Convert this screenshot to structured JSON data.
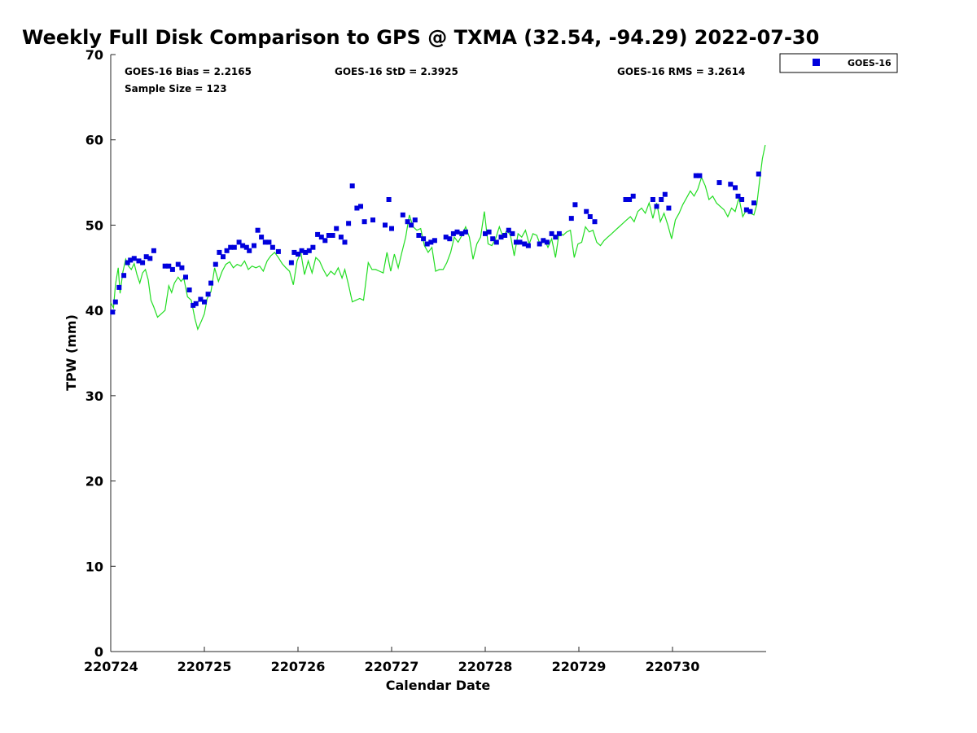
{
  "chart_data": {
    "type": "scatter",
    "title": "Weekly Full Disk Comparison to GPS @ TXMA (32.54, -94.29) 2022-07-30",
    "xlabel": "Calendar Date",
    "ylabel": "TPW (mm)",
    "xlim": [
      0,
      7
    ],
    "ylim": [
      0,
      70
    ],
    "x_ticks": [
      {
        "value": 0,
        "label": "220724"
      },
      {
        "value": 1,
        "label": "220725"
      },
      {
        "value": 2,
        "label": "220726"
      },
      {
        "value": 3,
        "label": "220727"
      },
      {
        "value": 4,
        "label": "220728"
      },
      {
        "value": 5,
        "label": "220729"
      },
      {
        "value": 6,
        "label": "220730"
      }
    ],
    "y_ticks": [
      0,
      10,
      20,
      30,
      40,
      50,
      60,
      70
    ],
    "grid": false,
    "legend_position": "outside-top-right",
    "stats": {
      "bias": "GOES-16 Bias = 2.2165",
      "std": "GOES-16 StD = 2.3925",
      "rms": "GOES-16 RMS = 3.2614",
      "sample": "Sample Size = 123"
    },
    "colors": {
      "goes": "#0000dd",
      "gps": "#22dd22"
    },
    "series": [
      {
        "name": "GOES-16",
        "kind": "points",
        "points": [
          [
            0.02,
            39.8
          ],
          [
            0.05,
            41.0
          ],
          [
            0.09,
            42.7
          ],
          [
            0.14,
            44.1
          ],
          [
            0.18,
            45.6
          ],
          [
            0.21,
            45.9
          ],
          [
            0.25,
            46.1
          ],
          [
            0.3,
            45.8
          ],
          [
            0.34,
            45.6
          ],
          [
            0.38,
            46.3
          ],
          [
            0.42,
            46.1
          ],
          [
            0.46,
            47.0
          ],
          [
            0.58,
            45.2
          ],
          [
            0.62,
            45.2
          ],
          [
            0.66,
            44.8
          ],
          [
            0.72,
            45.4
          ],
          [
            0.76,
            45.0
          ],
          [
            0.8,
            43.9
          ],
          [
            0.84,
            42.4
          ],
          [
            0.88,
            40.6
          ],
          [
            0.91,
            40.8
          ],
          [
            0.96,
            41.3
          ],
          [
            1.0,
            41.0
          ],
          [
            1.04,
            41.9
          ],
          [
            1.07,
            43.2
          ],
          [
            1.12,
            45.4
          ],
          [
            1.16,
            46.8
          ],
          [
            1.2,
            46.3
          ],
          [
            1.24,
            47.0
          ],
          [
            1.28,
            47.4
          ],
          [
            1.32,
            47.4
          ],
          [
            1.37,
            48.0
          ],
          [
            1.41,
            47.6
          ],
          [
            1.45,
            47.4
          ],
          [
            1.48,
            47.0
          ],
          [
            1.53,
            47.6
          ],
          [
            1.57,
            49.4
          ],
          [
            1.61,
            48.6
          ],
          [
            1.65,
            48.0
          ],
          [
            1.69,
            48.0
          ],
          [
            1.73,
            47.4
          ],
          [
            1.79,
            46.9
          ],
          [
            1.93,
            45.6
          ],
          [
            1.96,
            46.8
          ],
          [
            2.0,
            46.6
          ],
          [
            2.04,
            47.0
          ],
          [
            2.08,
            46.8
          ],
          [
            2.12,
            47.0
          ],
          [
            2.16,
            47.4
          ],
          [
            2.21,
            48.9
          ],
          [
            2.25,
            48.6
          ],
          [
            2.29,
            48.2
          ],
          [
            2.33,
            48.8
          ],
          [
            2.37,
            48.8
          ],
          [
            2.41,
            49.6
          ],
          [
            2.46,
            48.6
          ],
          [
            2.5,
            48.0
          ],
          [
            2.54,
            50.2
          ],
          [
            2.58,
            54.6
          ],
          [
            2.63,
            52.0
          ],
          [
            2.67,
            52.2
          ],
          [
            2.71,
            50.4
          ],
          [
            2.8,
            50.6
          ],
          [
            2.93,
            50.0
          ],
          [
            2.97,
            53.0
          ],
          [
            3.0,
            49.6
          ],
          [
            3.12,
            51.2
          ],
          [
            3.17,
            50.4
          ],
          [
            3.21,
            50.0
          ],
          [
            3.25,
            50.6
          ],
          [
            3.29,
            48.8
          ],
          [
            3.34,
            48.4
          ],
          [
            3.38,
            47.8
          ],
          [
            3.42,
            48.0
          ],
          [
            3.46,
            48.2
          ],
          [
            3.58,
            48.6
          ],
          [
            3.62,
            48.4
          ],
          [
            3.66,
            49.0
          ],
          [
            3.7,
            49.2
          ],
          [
            3.75,
            49.0
          ],
          [
            3.79,
            49.2
          ],
          [
            4.0,
            49.0
          ],
          [
            4.04,
            49.2
          ],
          [
            4.08,
            48.4
          ],
          [
            4.12,
            48.0
          ],
          [
            4.17,
            48.6
          ],
          [
            4.21,
            48.8
          ],
          [
            4.25,
            49.4
          ],
          [
            4.29,
            49.0
          ],
          [
            4.33,
            48.0
          ],
          [
            4.37,
            48.0
          ],
          [
            4.42,
            47.8
          ],
          [
            4.46,
            47.6
          ],
          [
            4.58,
            47.8
          ],
          [
            4.62,
            48.2
          ],
          [
            4.66,
            48.0
          ],
          [
            4.71,
            49.0
          ],
          [
            4.75,
            48.6
          ],
          [
            4.79,
            49.0
          ],
          [
            4.92,
            50.8
          ],
          [
            4.96,
            52.4
          ],
          [
            5.08,
            51.6
          ],
          [
            5.12,
            51.0
          ],
          [
            5.17,
            50.4
          ],
          [
            5.5,
            53.0
          ],
          [
            5.54,
            53.0
          ],
          [
            5.58,
            53.4
          ],
          [
            5.79,
            53.0
          ],
          [
            5.83,
            52.2
          ],
          [
            5.88,
            53.0
          ],
          [
            5.92,
            53.6
          ],
          [
            5.96,
            52.0
          ],
          [
            6.25,
            55.8
          ],
          [
            6.29,
            55.8
          ],
          [
            6.5,
            55.0
          ],
          [
            6.62,
            54.8
          ],
          [
            6.67,
            54.4
          ],
          [
            6.7,
            53.4
          ],
          [
            6.74,
            53.0
          ],
          [
            6.79,
            51.8
          ],
          [
            6.83,
            51.6
          ],
          [
            6.87,
            52.6
          ],
          [
            6.92,
            56.0
          ]
        ]
      },
      {
        "name": "",
        "kind": "line",
        "points": [
          [
            0.0,
            40.9
          ],
          [
            0.03,
            40.3
          ],
          [
            0.05,
            43.0
          ],
          [
            0.08,
            45.0
          ],
          [
            0.1,
            42.0
          ],
          [
            0.13,
            44.5
          ],
          [
            0.16,
            46.0
          ],
          [
            0.19,
            45.2
          ],
          [
            0.22,
            44.8
          ],
          [
            0.25,
            45.5
          ],
          [
            0.28,
            44.2
          ],
          [
            0.31,
            43.2
          ],
          [
            0.34,
            44.4
          ],
          [
            0.37,
            44.8
          ],
          [
            0.4,
            43.6
          ],
          [
            0.43,
            41.2
          ],
          [
            0.46,
            40.4
          ],
          [
            0.5,
            39.2
          ],
          [
            0.54,
            39.6
          ],
          [
            0.58,
            40.0
          ],
          [
            0.62,
            42.9
          ],
          [
            0.65,
            42.1
          ],
          [
            0.68,
            43.2
          ],
          [
            0.72,
            43.9
          ],
          [
            0.75,
            43.4
          ],
          [
            0.78,
            43.8
          ],
          [
            0.82,
            41.6
          ],
          [
            0.86,
            41.2
          ],
          [
            0.9,
            39.0
          ],
          [
            0.93,
            37.8
          ],
          [
            0.97,
            38.8
          ],
          [
            1.0,
            39.6
          ],
          [
            1.03,
            41.4
          ],
          [
            1.07,
            42.2
          ],
          [
            1.11,
            45.0
          ],
          [
            1.15,
            43.4
          ],
          [
            1.19,
            44.6
          ],
          [
            1.23,
            45.4
          ],
          [
            1.27,
            45.7
          ],
          [
            1.31,
            45.0
          ],
          [
            1.35,
            45.4
          ],
          [
            1.39,
            45.2
          ],
          [
            1.43,
            45.8
          ],
          [
            1.47,
            44.8
          ],
          [
            1.51,
            45.2
          ],
          [
            1.55,
            45.0
          ],
          [
            1.59,
            45.2
          ],
          [
            1.63,
            44.6
          ],
          [
            1.67,
            45.8
          ],
          [
            1.71,
            46.4
          ],
          [
            1.75,
            46.8
          ],
          [
            1.79,
            46.2
          ],
          [
            1.83,
            45.5
          ],
          [
            1.87,
            45.0
          ],
          [
            1.91,
            44.6
          ],
          [
            1.95,
            43.0
          ],
          [
            1.99,
            45.8
          ],
          [
            2.03,
            46.8
          ],
          [
            2.07,
            44.2
          ],
          [
            2.11,
            45.8
          ],
          [
            2.15,
            44.4
          ],
          [
            2.19,
            46.2
          ],
          [
            2.23,
            45.8
          ],
          [
            2.27,
            44.8
          ],
          [
            2.31,
            44.0
          ],
          [
            2.35,
            44.6
          ],
          [
            2.39,
            44.2
          ],
          [
            2.43,
            45.0
          ],
          [
            2.47,
            43.8
          ],
          [
            2.5,
            44.8
          ],
          [
            2.54,
            43.0
          ],
          [
            2.58,
            41.0
          ],
          [
            2.62,
            41.2
          ],
          [
            2.66,
            41.4
          ],
          [
            2.7,
            41.2
          ],
          [
            2.75,
            45.6
          ],
          [
            2.79,
            44.8
          ],
          [
            2.83,
            44.8
          ],
          [
            2.87,
            44.6
          ],
          [
            2.91,
            44.4
          ],
          [
            2.95,
            46.8
          ],
          [
            2.99,
            44.6
          ],
          [
            3.03,
            46.6
          ],
          [
            3.07,
            45.0
          ],
          [
            3.11,
            46.8
          ],
          [
            3.15,
            48.6
          ],
          [
            3.19,
            51.2
          ],
          [
            3.23,
            49.8
          ],
          [
            3.27,
            49.4
          ],
          [
            3.31,
            49.6
          ],
          [
            3.35,
            47.6
          ],
          [
            3.39,
            46.8
          ],
          [
            3.43,
            47.4
          ],
          [
            3.47,
            44.6
          ],
          [
            3.51,
            44.8
          ],
          [
            3.55,
            44.8
          ],
          [
            3.59,
            45.6
          ],
          [
            3.63,
            46.8
          ],
          [
            3.67,
            48.6
          ],
          [
            3.71,
            48.0
          ],
          [
            3.75,
            48.8
          ],
          [
            3.79,
            49.8
          ],
          [
            3.83,
            48.6
          ],
          [
            3.87,
            46.0
          ],
          [
            3.91,
            47.8
          ],
          [
            3.95,
            48.6
          ],
          [
            3.99,
            51.6
          ],
          [
            4.03,
            47.8
          ],
          [
            4.07,
            47.6
          ],
          [
            4.11,
            48.4
          ],
          [
            4.15,
            49.8
          ],
          [
            4.19,
            48.6
          ],
          [
            4.23,
            49.4
          ],
          [
            4.27,
            48.8
          ],
          [
            4.31,
            46.4
          ],
          [
            4.35,
            49.0
          ],
          [
            4.39,
            48.6
          ],
          [
            4.43,
            49.4
          ],
          [
            4.47,
            47.8
          ],
          [
            4.51,
            49.0
          ],
          [
            4.55,
            48.8
          ],
          [
            4.59,
            47.6
          ],
          [
            4.63,
            48.4
          ],
          [
            4.67,
            47.4
          ],
          [
            4.71,
            48.4
          ],
          [
            4.75,
            46.2
          ],
          [
            4.79,
            49.2
          ],
          [
            4.83,
            48.8
          ],
          [
            4.87,
            49.2
          ],
          [
            4.91,
            49.4
          ],
          [
            4.95,
            46.2
          ],
          [
            4.99,
            47.8
          ],
          [
            5.03,
            48.0
          ],
          [
            5.07,
            49.8
          ],
          [
            5.11,
            49.2
          ],
          [
            5.15,
            49.4
          ],
          [
            5.19,
            48.0
          ],
          [
            5.23,
            47.6
          ],
          [
            5.27,
            48.2
          ],
          [
            5.31,
            48.6
          ],
          [
            5.35,
            49.0
          ],
          [
            5.39,
            49.4
          ],
          [
            5.43,
            49.8
          ],
          [
            5.47,
            50.2
          ],
          [
            5.51,
            50.6
          ],
          [
            5.55,
            51.0
          ],
          [
            5.59,
            50.4
          ],
          [
            5.63,
            51.6
          ],
          [
            5.67,
            52.0
          ],
          [
            5.71,
            51.4
          ],
          [
            5.75,
            52.6
          ],
          [
            5.79,
            50.8
          ],
          [
            5.83,
            52.6
          ],
          [
            5.87,
            50.4
          ],
          [
            5.91,
            51.4
          ],
          [
            5.95,
            50.0
          ],
          [
            5.99,
            48.4
          ],
          [
            6.03,
            50.6
          ],
          [
            6.07,
            51.4
          ],
          [
            6.11,
            52.4
          ],
          [
            6.15,
            53.2
          ],
          [
            6.19,
            54.0
          ],
          [
            6.23,
            53.4
          ],
          [
            6.27,
            54.2
          ],
          [
            6.31,
            55.6
          ],
          [
            6.35,
            54.6
          ],
          [
            6.39,
            53.0
          ],
          [
            6.43,
            53.4
          ],
          [
            6.47,
            52.6
          ],
          [
            6.51,
            52.2
          ],
          [
            6.55,
            51.8
          ],
          [
            6.59,
            51.0
          ],
          [
            6.63,
            52.0
          ],
          [
            6.67,
            51.6
          ],
          [
            6.71,
            53.2
          ],
          [
            6.75,
            51.0
          ],
          [
            6.79,
            51.8
          ],
          [
            6.83,
            51.4
          ],
          [
            6.87,
            51.2
          ],
          [
            6.9,
            52.4
          ],
          [
            6.93,
            55.2
          ],
          [
            6.96,
            57.8
          ],
          [
            6.99,
            59.4
          ]
        ]
      }
    ]
  }
}
